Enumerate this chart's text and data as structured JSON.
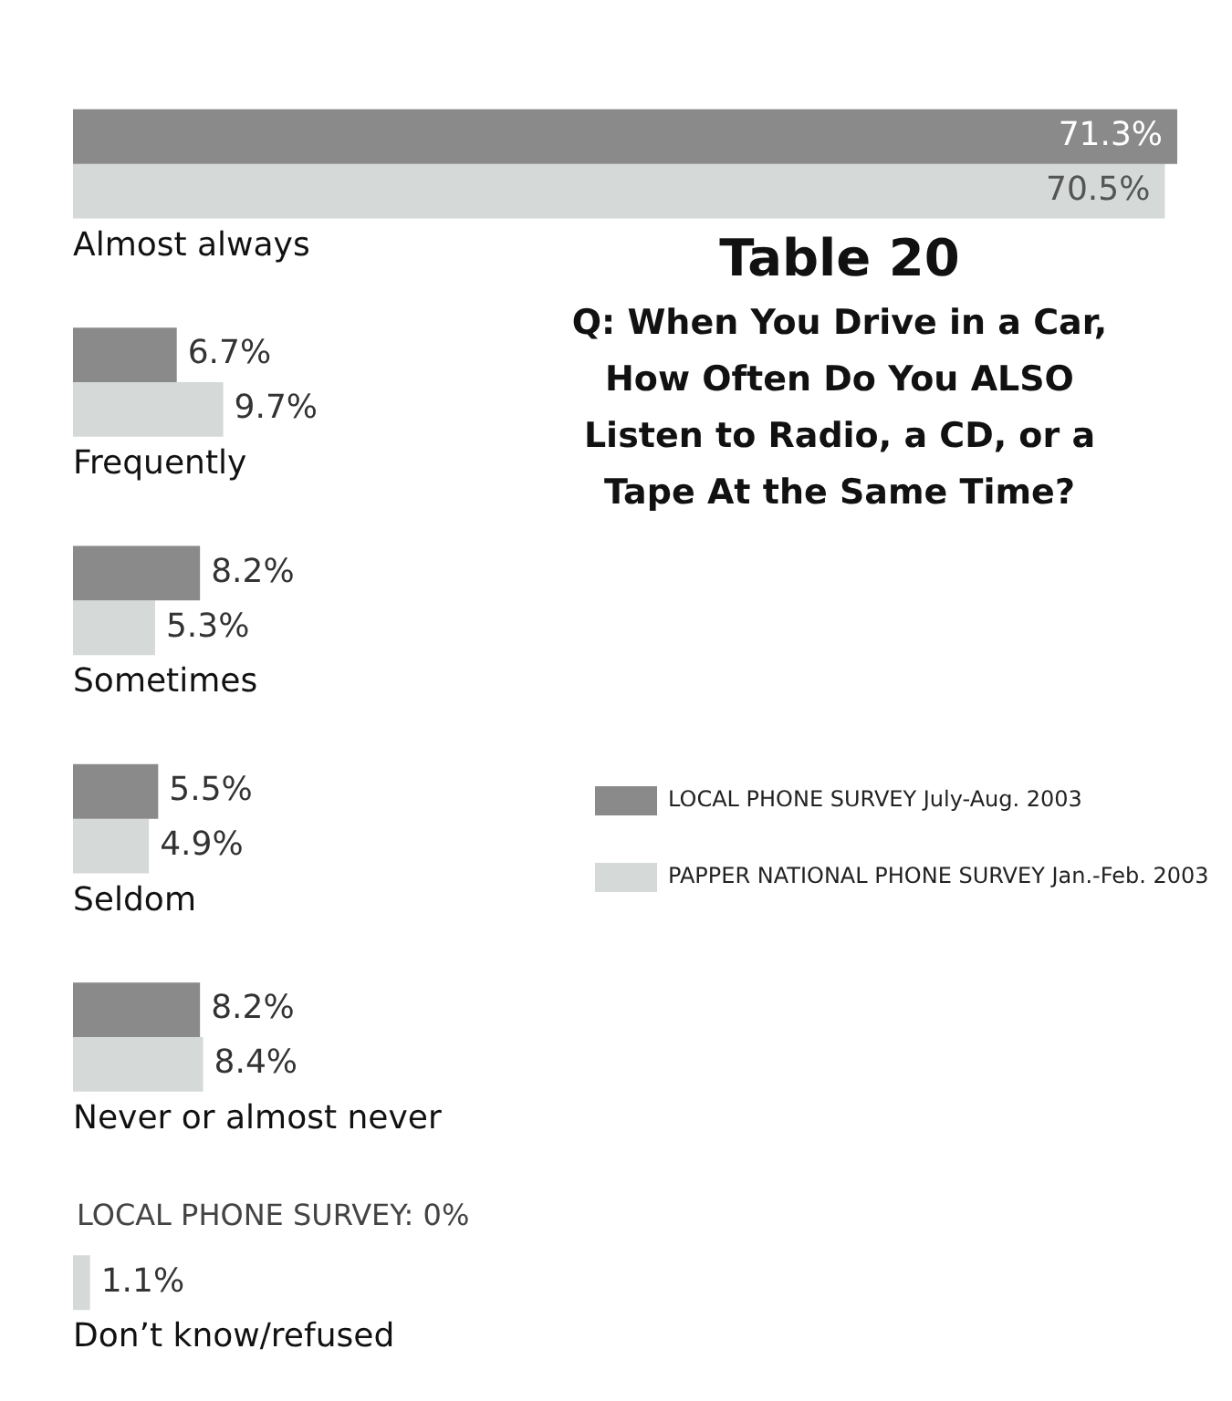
{
  "chart_data": {
    "type": "bar",
    "orientation": "horizontal",
    "title": "Table 20",
    "subtitle": "Q: When You Drive in a Car, How Often Do You ALSO Listen to Radio, a CD, or a Tape At the Same Time?",
    "categories": [
      "Almost always",
      "Frequently",
      "Sometimes",
      "Seldom",
      "Never or almost never",
      "Don’t know/refused"
    ],
    "series": [
      {
        "name": "LOCAL PHONE SURVEY July-Aug. 2003",
        "color": "#8a8a8a",
        "values": [
          71.3,
          6.7,
          8.2,
          5.5,
          8.2,
          0
        ],
        "value_labels": [
          "71.3%",
          "6.7%",
          "8.2%",
          "5.5%",
          "8.2%",
          null
        ]
      },
      {
        "name": "PAPPER NATIONAL PHONE SURVEY Jan.-Feb. 2003",
        "color": "#d5d9d8",
        "values": [
          70.5,
          9.7,
          5.3,
          4.9,
          8.4,
          1.1
        ],
        "value_labels": [
          "70.5%",
          "9.7%",
          "5.3%",
          "4.9%",
          "8.4%",
          "1.1%"
        ]
      }
    ],
    "legend": "right",
    "annotations": [
      "LOCAL PHONE SURVEY: 0%"
    ]
  }
}
